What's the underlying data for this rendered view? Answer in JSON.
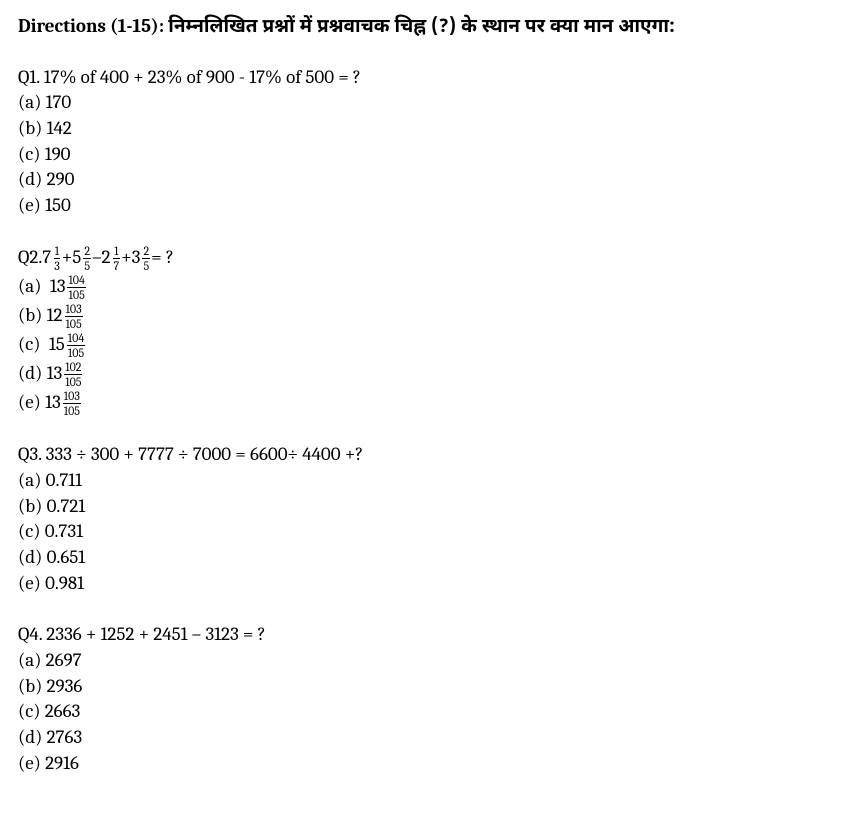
{
  "directions": {
    "label": "Directions (1-15):",
    "hindi": "निम्नलिखित प्रश्नों में प्रश्नवाचक चिह्न (?) के स्थान पर क्या मान आएगा:"
  },
  "q1": {
    "prompt": "Q1. 17% of 400 + 23% of 900 - 17% of 500 = ?",
    "a": "(a) 170",
    "b": "(b) 142",
    "c": "(c) 190",
    "d": "(d) 290",
    "e": "(e) 150"
  },
  "q2": {
    "label": "Q2. ",
    "t1": {
      "int": "7",
      "num": "1",
      "den": "3"
    },
    "t2": {
      "int": "5",
      "num": "2",
      "den": "5"
    },
    "t3": {
      "int": "2",
      "num": "1",
      "den": "7"
    },
    "t4": {
      "int": "3",
      "num": "2",
      "den": "5"
    },
    "plus": " + ",
    "minus": " – ",
    "eq": " = ?",
    "a": {
      "pre": "(a)  ",
      "int": "13",
      "num": "104",
      "den": "105"
    },
    "b": {
      "pre": "(b) ",
      "int": "12",
      "num": "103",
      "den": "105"
    },
    "c": {
      "pre": "(c)  ",
      "int": "15",
      "num": "104",
      "den": "105"
    },
    "d": {
      "pre": "(d) ",
      "int": "13",
      "num": "102",
      "den": "105"
    },
    "e": {
      "pre": "(e) ",
      "int": "13",
      "num": "103",
      "den": "105"
    }
  },
  "q3": {
    "prompt": "Q3.  333 ÷ 300 + 7777 ÷ 7000 = 6600÷ 4400 +?",
    "a": "(a) 0.711",
    "b": "(b) 0.721",
    "c": "(c) 0.731",
    "d": "(d) 0.651",
    "e": "(e) 0.981"
  },
  "q4": {
    "prompt": "Q4.  2336 + 1252 + 2451 – 3123 = ?",
    "a": "(a) 2697",
    "b": "(b) 2936",
    "c": "(c) 2663",
    "d": "(d) 2763",
    "e": "(e) 2916"
  }
}
